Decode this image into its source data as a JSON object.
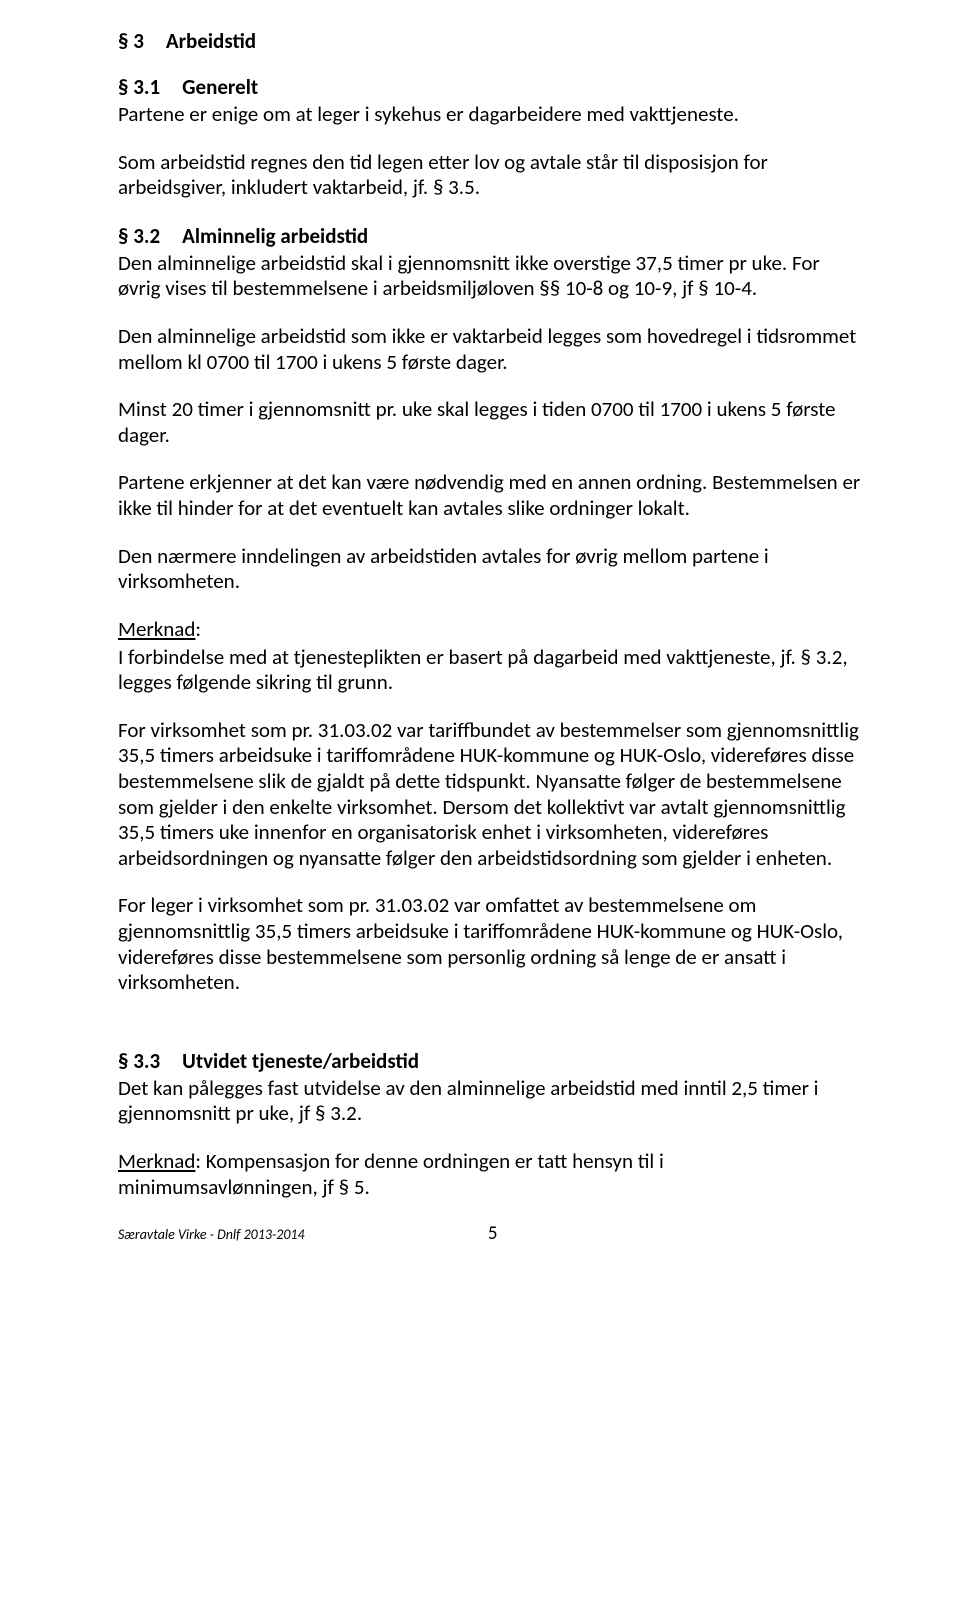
{
  "section3": {
    "number": "§ 3",
    "title": "Arbeidstid"
  },
  "section31": {
    "number": "§ 3.1",
    "title": "Generelt",
    "p1": "Partene er enige om at leger i sykehus er dagarbeidere med vakttjeneste.",
    "p2": "Som arbeidstid regnes den tid legen etter lov og avtale står til disposisjon for arbeidsgiver, inkludert vaktarbeid, jf. § 3.5."
  },
  "section32": {
    "number": "§ 3.2",
    "title": "Alminnelig arbeidstid",
    "p1": "Den alminnelige arbeidstid skal i gjennomsnitt ikke overstige 37,5 timer pr uke. For øvrig vises til bestemmelsene i arbeidsmiljøloven §§ 10-8 og 10-9, jf § 10-4.",
    "p2": "Den alminnelige arbeidstid som ikke er vaktarbeid legges som hovedregel i tidsrommet mellom kl 0700 til 1700 i ukens 5 første dager.",
    "p3": "Minst 20 timer i gjennomsnitt pr. uke skal legges i tiden 0700 til 1700 i ukens 5 første dager.",
    "p4": "Partene erkjenner at det kan være nødvendig med en annen ordning. Bestemmelsen er ikke til hinder for at det eventuelt kan avtales slike ordninger lokalt.",
    "p5": "Den nærmere inndelingen av arbeidstiden avtales for øvrig mellom partene i virksomheten.",
    "merknad_label": "Merknad",
    "merknad_colon": ":",
    "p6": "I forbindelse med at tjenesteplikten er basert på dagarbeid med vakttjeneste, jf. § 3.2, legges følgende sikring til grunn.",
    "p7": "For virksomhet som pr. 31.03.02 var tariffbundet av bestemmelser som gjennomsnittlig 35,5 timers arbeidsuke i tariffområdene HUK-kommune og HUK-Oslo, videreføres disse bestemmelsene slik de gjaldt på dette tidspunkt. Nyansatte følger de bestemmelsene som gjelder i den enkelte virksomhet. Dersom det kollektivt var avtalt gjennomsnittlig 35,5 timers uke innenfor en organisatorisk enhet i virksomheten, videreføres arbeidsordningen og nyansatte følger den arbeidstidsordning som gjelder i enheten.",
    "p8": "For leger i virksomhet som pr. 31.03.02 var omfattet av bestemmelsene om gjennomsnittlig 35,5 timers arbeidsuke i tariffområdene HUK-kommune og HUK-Oslo, videreføres disse bestemmelsene som personlig ordning så lenge de er ansatt i virksomheten."
  },
  "section33": {
    "number": "§ 3.3",
    "title": "Utvidet tjeneste/arbeidstid",
    "p1": "Det kan pålegges fast utvidelse av den alminnelige arbeidstid med inntil 2,5 timer i gjennomsnitt pr uke, jf § 3.2.",
    "merknad_prefix": "Merknad",
    "p2_rest": ": Kompensasjon for denne ordningen er tatt hensyn til i minimumsavlønningen, jf § 5."
  },
  "footer": {
    "left": "Særavtale Virke  - Dnlf  2013-2014",
    "page": "5"
  }
}
